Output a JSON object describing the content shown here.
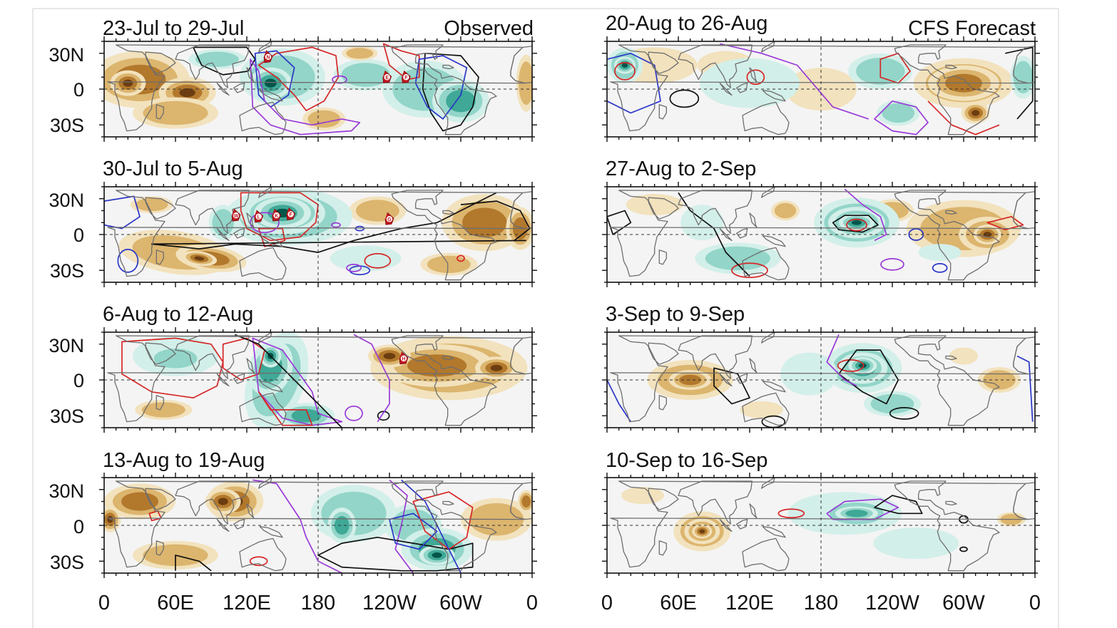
{
  "figure": {
    "latitude_labels": [
      "30N",
      "0",
      "30S"
    ],
    "longitude_labels": [
      "0",
      "60E",
      "120E",
      "180",
      "120W",
      "60W",
      "0"
    ],
    "colors": {
      "dry_dark": "#6b3d10",
      "dry_mid": "#b2782c",
      "dry_light": "#dcb56e",
      "dry_pale": "#f2e2bd",
      "wet_pale": "#d3efe9",
      "wet_light": "#93d5c9",
      "wet_mid": "#3fa896",
      "wet_dark": "#04554a",
      "ocean_neutral": "#f4f4f4",
      "contour_red": "#d62626",
      "contour_blue": "#2a36c8",
      "contour_purple": "#9a3ad8",
      "contour_black": "#111111",
      "coast": "#6e6e6e",
      "storm_marker": "#c0171f"
    }
  },
  "columns": [
    {
      "label": "Observed",
      "panels": [
        {
          "title": "23-Jul to 29-Jul",
          "storms": [
            "N",
            "E",
            "F"
          ]
        },
        {
          "title": "30-Jul to 5-Aug",
          "storms": [
            "W",
            "L",
            "K",
            "F",
            "G"
          ]
        },
        {
          "title": "6-Aug to 12-Aug",
          "storms": [
            "H"
          ]
        },
        {
          "title": "13-Aug to 19-Aug",
          "storms": []
        }
      ]
    },
    {
      "label": "CFS Forecast",
      "panels": [
        {
          "title": "20-Aug to 26-Aug",
          "storms": []
        },
        {
          "title": "27-Aug to 2-Sep",
          "storms": []
        },
        {
          "title": "3-Sep to 9-Sep",
          "storms": []
        },
        {
          "title": "10-Sep to 16-Sep",
          "storms": []
        }
      ]
    }
  ]
}
